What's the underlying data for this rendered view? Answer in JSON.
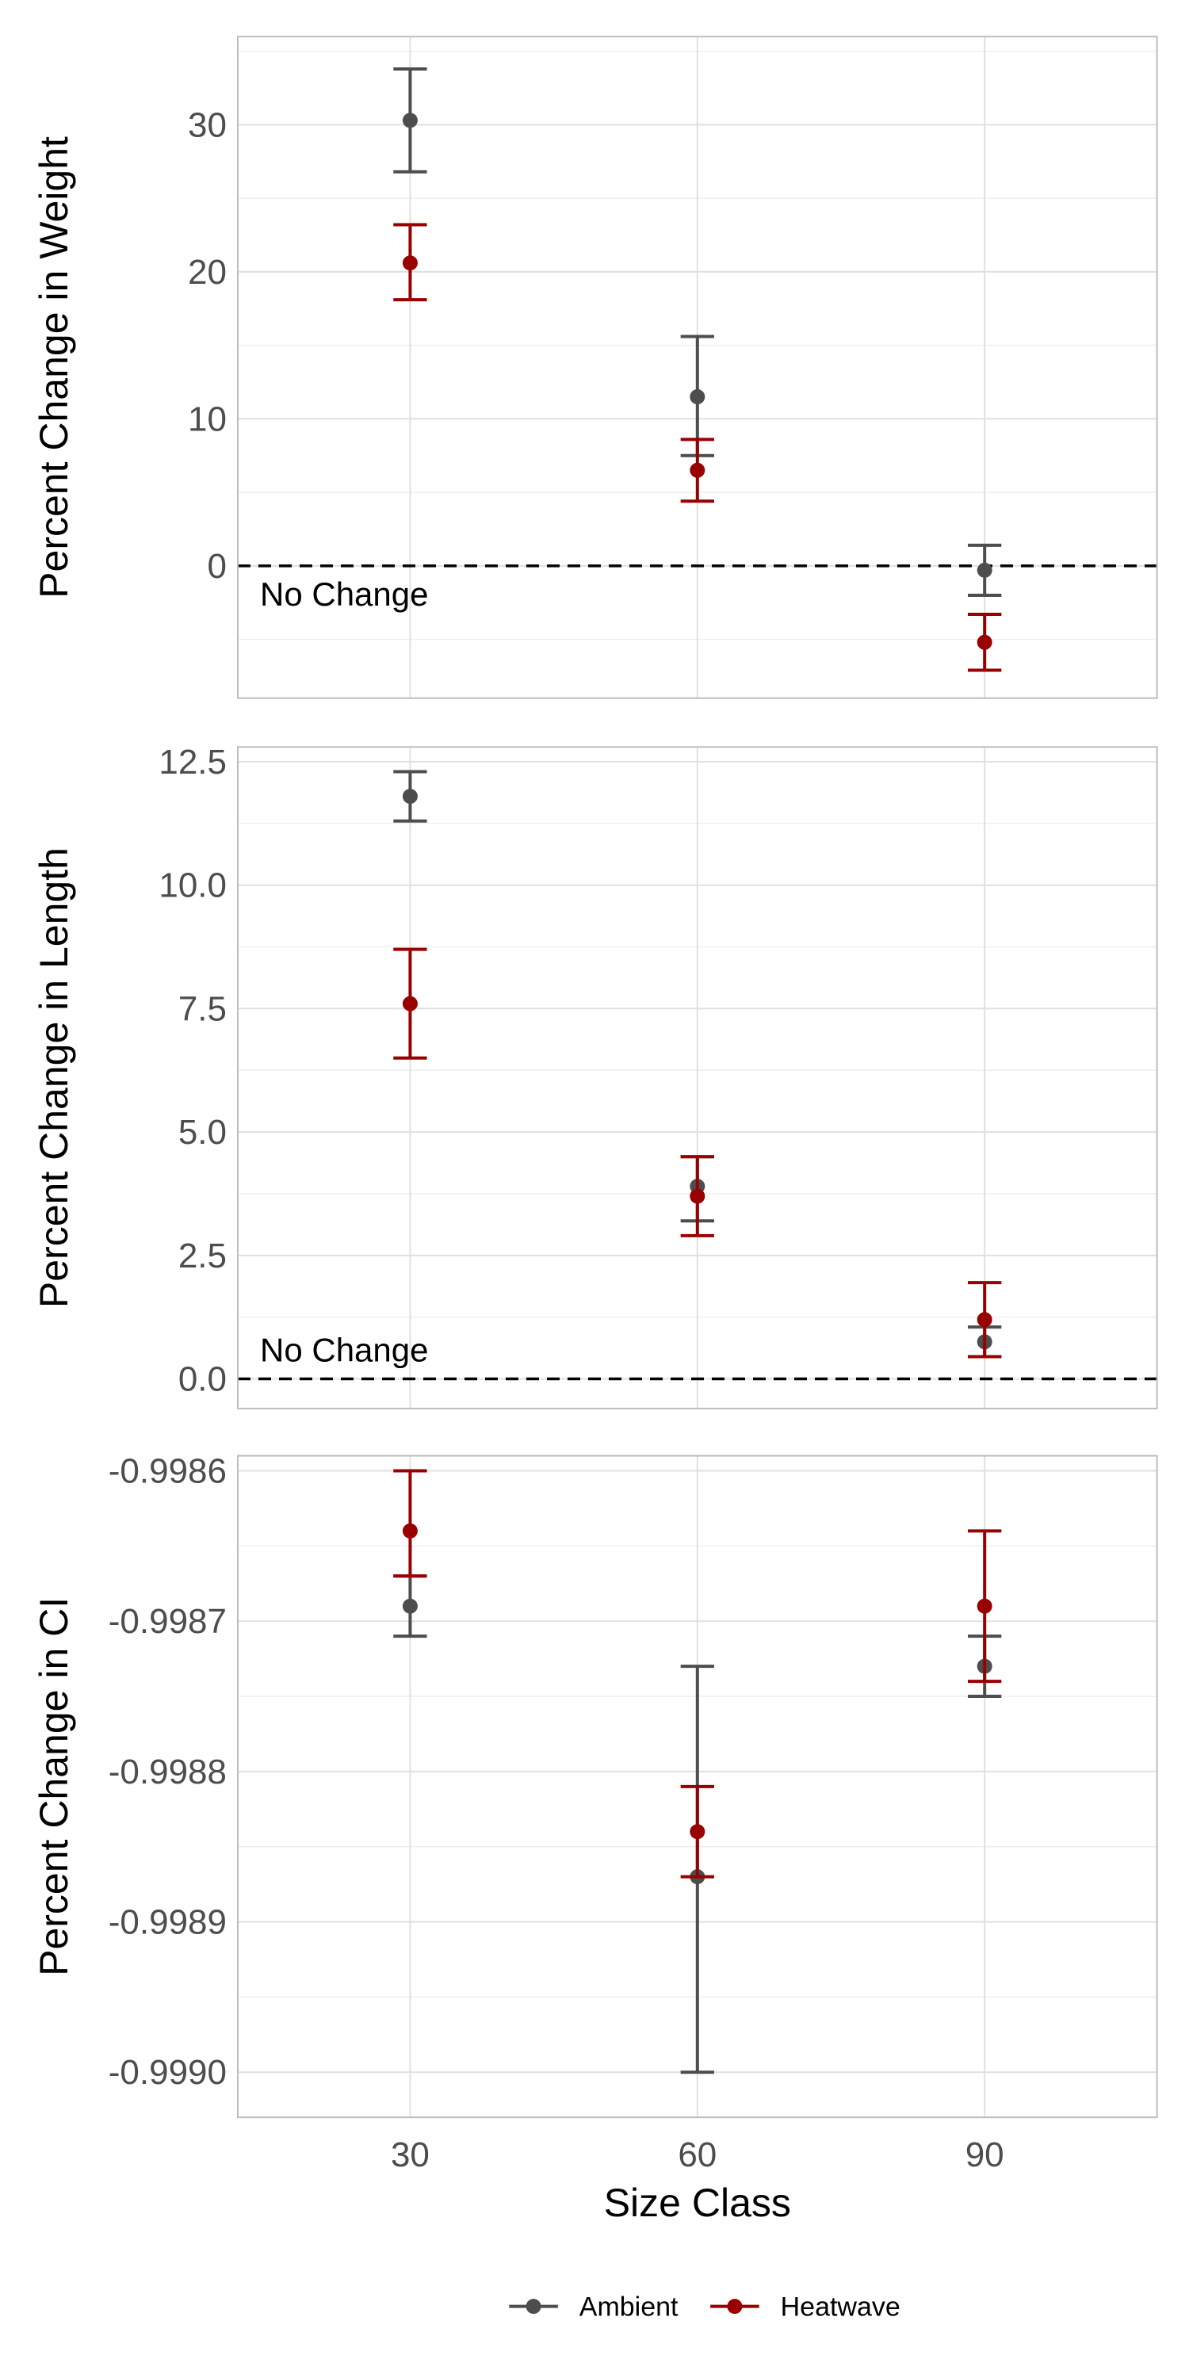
{
  "colors": {
    "ambient": "#4d4d4d",
    "heatwave": "#990000",
    "grid": "#e0e0e0",
    "frame": "#bdbdbd"
  },
  "legend": {
    "items": [
      {
        "label": "Ambient",
        "color": "#4d4d4d"
      },
      {
        "label": "Heatwave",
        "color": "#990000"
      }
    ],
    "position": "bottom"
  },
  "chart_data": [
    {
      "type": "scatter",
      "ylabel": "Percent Change in Weight",
      "xlabel": "",
      "xlim": [
        12,
        108
      ],
      "x_ticks": [
        30,
        60,
        90
      ],
      "ylim": [
        -9,
        36
      ],
      "y_ticks": [
        0,
        10,
        20,
        30
      ],
      "y_tick_labels": [
        "0",
        "10",
        "20",
        "30"
      ],
      "reference_line": {
        "y": 0,
        "style": "dashed",
        "label": "No Change"
      },
      "series": [
        {
          "name": "Ambient",
          "color": "#4d4d4d",
          "points": [
            {
              "x": 30,
              "y": 30.3,
              "lo": 26.8,
              "hi": 33.8
            },
            {
              "x": 60,
              "y": 11.5,
              "lo": 7.5,
              "hi": 15.6
            },
            {
              "x": 90,
              "y": -0.3,
              "lo": -2.0,
              "hi": 1.4
            }
          ]
        },
        {
          "name": "Heatwave",
          "color": "#990000",
          "points": [
            {
              "x": 30,
              "y": 20.6,
              "lo": 18.1,
              "hi": 23.2
            },
            {
              "x": 60,
              "y": 6.5,
              "lo": 4.4,
              "hi": 8.6
            },
            {
              "x": 90,
              "y": -5.2,
              "lo": -7.1,
              "hi": -3.3
            }
          ]
        }
      ]
    },
    {
      "type": "scatter",
      "ylabel": "Percent Change in Length",
      "xlabel": "",
      "xlim": [
        12,
        108
      ],
      "x_ticks": [
        30,
        60,
        90
      ],
      "ylim": [
        -0.6,
        12.8
      ],
      "y_ticks": [
        0,
        2.5,
        5,
        7.5,
        10,
        12.5
      ],
      "y_tick_labels": [
        "0.0",
        "2.5",
        "5.0",
        "7.5",
        "10.0",
        "12.5"
      ],
      "reference_line": {
        "y": 0,
        "style": "dashed",
        "label": "No Change"
      },
      "series": [
        {
          "name": "Ambient",
          "color": "#4d4d4d",
          "points": [
            {
              "x": 30,
              "y": 11.8,
              "lo": 11.3,
              "hi": 12.3
            },
            {
              "x": 60,
              "y": 3.9,
              "lo": 3.2,
              "hi": 4.5
            },
            {
              "x": 90,
              "y": 0.75,
              "lo": 0.45,
              "hi": 1.05
            }
          ]
        },
        {
          "name": "Heatwave",
          "color": "#990000",
          "points": [
            {
              "x": 30,
              "y": 7.6,
              "lo": 6.5,
              "hi": 8.7
            },
            {
              "x": 60,
              "y": 3.7,
              "lo": 2.9,
              "hi": 4.5
            },
            {
              "x": 90,
              "y": 1.2,
              "lo": 0.45,
              "hi": 1.95
            }
          ]
        }
      ]
    },
    {
      "type": "scatter",
      "ylabel": "Percent Change in CI",
      "xlabel": "Size Class",
      "xlim": [
        12,
        108
      ],
      "x_ticks": [
        30,
        60,
        90
      ],
      "x_tick_labels": [
        "30",
        "60",
        "90"
      ],
      "ylim": [
        -0.99903,
        -0.99859
      ],
      "y_ticks": [
        -0.9986,
        -0.9987,
        -0.9988,
        -0.9989,
        -0.999
      ],
      "y_tick_labels": [
        "-0.9986",
        "-0.9987",
        "-0.9988",
        "-0.9989",
        "-0.9990"
      ],
      "series": [
        {
          "name": "Ambient",
          "color": "#4d4d4d",
          "points": [
            {
              "x": 30,
              "y": -0.99869,
              "lo": -0.99871,
              "hi": -0.99867
            },
            {
              "x": 60,
              "y": -0.99887,
              "lo": -0.999,
              "hi": -0.99873
            },
            {
              "x": 90,
              "y": -0.99873,
              "lo": -0.99875,
              "hi": -0.99871
            }
          ]
        },
        {
          "name": "Heatwave",
          "color": "#990000",
          "points": [
            {
              "x": 30,
              "y": -0.99864,
              "lo": -0.99867,
              "hi": -0.9986
            },
            {
              "x": 60,
              "y": -0.99884,
              "lo": -0.99887,
              "hi": -0.99881
            },
            {
              "x": 90,
              "y": -0.99869,
              "lo": -0.99874,
              "hi": -0.99864
            }
          ]
        }
      ]
    }
  ]
}
